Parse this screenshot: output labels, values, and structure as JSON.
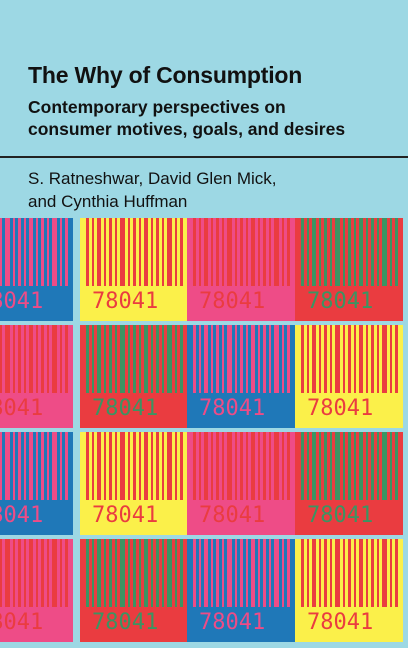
{
  "book": {
    "title": "The Why of Consumption",
    "subtitle_lines": [
      "Contemporary perspectives on",
      "consumer motives, goals, and desires"
    ],
    "author_lines": [
      "S. Ratneshwar, David Glen Mick,",
      "and Cynthia Huffman"
    ]
  },
  "barcode_grid": {
    "number": "78041",
    "colors": {
      "red": "#ea3c40",
      "yellow": "#fbf04a",
      "blue": "#1f78b8",
      "pink": "#ee4c87",
      "green": "#3b9462"
    },
    "tiles": [
      {
        "bg": "blue",
        "fg": "pink"
      },
      {
        "bg": "yellow",
        "fg": "red"
      },
      {
        "bg": "pink",
        "fg": "red"
      },
      {
        "bg": "red",
        "fg": "green"
      },
      {
        "bg": "pink",
        "fg": "red"
      },
      {
        "bg": "red",
        "fg": "green"
      },
      {
        "bg": "blue",
        "fg": "pink"
      },
      {
        "bg": "yellow",
        "fg": "red"
      },
      {
        "bg": "blue",
        "fg": "pink"
      },
      {
        "bg": "yellow",
        "fg": "red"
      },
      {
        "bg": "pink",
        "fg": "red"
      },
      {
        "bg": "red",
        "fg": "green"
      },
      {
        "bg": "pink",
        "fg": "red"
      },
      {
        "bg": "red",
        "fg": "green"
      },
      {
        "bg": "blue",
        "fg": "pink"
      },
      {
        "bg": "yellow",
        "fg": "red"
      }
    ]
  }
}
